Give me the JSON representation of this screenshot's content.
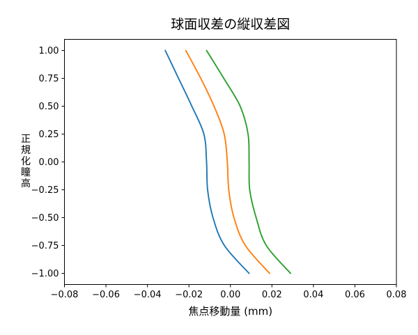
{
  "figure": {
    "background": "#ffffff",
    "plot_bg": "#ffffff",
    "spine_color": "#000000"
  },
  "chart_data": {
    "type": "line",
    "title": "球面収差の縦収差図",
    "xlabel": "焦点移動量 (mm)",
    "ylabel": "正規化瞳高",
    "ylabel_chars": [
      "正",
      "規",
      "化",
      "瞳",
      "高"
    ],
    "xlim": [
      -0.08,
      0.08
    ],
    "ylim": [
      -1.1,
      1.1
    ],
    "grid": false,
    "legend": null,
    "xticks": {
      "values": [
        -0.08,
        -0.06,
        -0.04,
        -0.02,
        0.0,
        0.02,
        0.04,
        0.06,
        0.08
      ],
      "labels": [
        "−0.08",
        "−0.06",
        "−0.04",
        "−0.02",
        "0.00",
        "0.02",
        "0.04",
        "0.06",
        "0.08"
      ]
    },
    "yticks": {
      "values": [
        1.0,
        0.75,
        0.5,
        0.25,
        0.0,
        -0.25,
        -0.5,
        -0.75,
        -1.0
      ],
      "labels": [
        "1.00",
        "0.75",
        "0.50",
        "0.25",
        "0.00",
        "−0.25",
        "−0.50",
        "−0.75",
        "−1.00"
      ]
    },
    "pupil_height": [
      1.0,
      0.75,
      0.5,
      0.25,
      0.0,
      -0.25,
      -0.5,
      -0.75,
      -1.0
    ],
    "series": [
      {
        "name": "series-blue",
        "color": "#1f77b4",
        "focal_shift_mm": [
          -0.0314,
          -0.025,
          -0.0186,
          -0.0128,
          -0.0115,
          -0.011,
          -0.0084,
          -0.0029,
          0.009
        ]
      },
      {
        "name": "series-orange",
        "color": "#ff7f0e",
        "focal_shift_mm": [
          -0.0215,
          -0.0143,
          -0.0079,
          -0.003,
          -0.0015,
          -0.0008,
          0.0017,
          0.0072,
          0.0189
        ]
      },
      {
        "name": "series-green",
        "color": "#2ca02c",
        "focal_shift_mm": [
          -0.0115,
          -0.0032,
          0.0047,
          0.0085,
          0.009,
          0.0093,
          0.0124,
          0.0173,
          0.029
        ]
      }
    ]
  }
}
